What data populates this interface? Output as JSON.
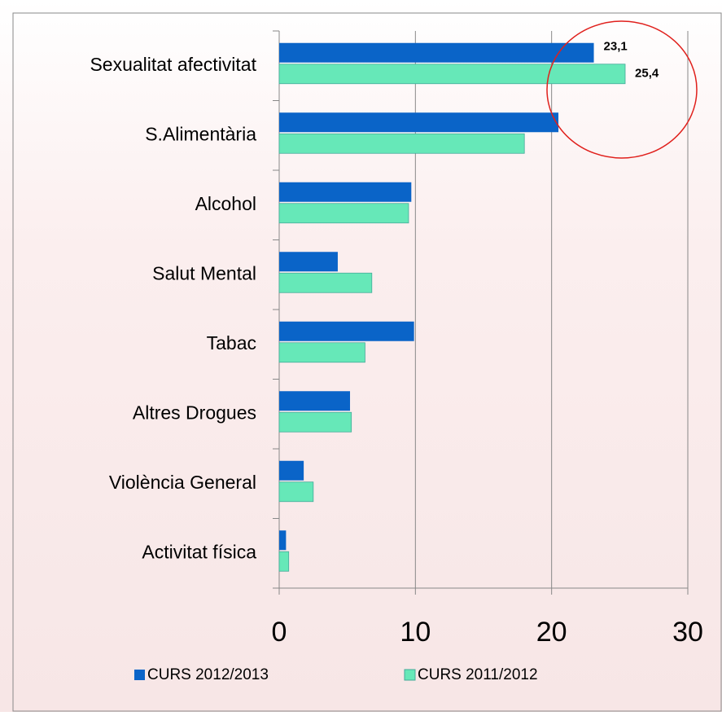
{
  "chart_data": {
    "type": "hbar",
    "categories": [
      "Sexualitat afectivitat",
      "S.Alimentària",
      "Alcohol",
      "Salut Mental",
      "Tabac",
      "Altres Drogues",
      "Violència General",
      "Activitat física"
    ],
    "series": [
      {
        "name": "CURS 2012/2013",
        "color": "#0a64c8",
        "values": [
          23.1,
          20.5,
          9.7,
          4.3,
          9.9,
          5.2,
          1.8,
          0.5
        ],
        "value_labels": [
          "23,1",
          null,
          null,
          null,
          null,
          null,
          null,
          null
        ]
      },
      {
        "name": "CURS 2011/2012",
        "color": "#66e8b8",
        "values": [
          25.4,
          18.0,
          9.5,
          6.8,
          6.3,
          5.3,
          2.5,
          0.7
        ],
        "value_labels": [
          "25,4",
          null,
          null,
          null,
          null,
          null,
          null,
          null
        ]
      }
    ],
    "xlim": [
      0,
      30
    ],
    "xticks": [
      0,
      10,
      20,
      30
    ],
    "grid": true,
    "legend": "bottom"
  }
}
